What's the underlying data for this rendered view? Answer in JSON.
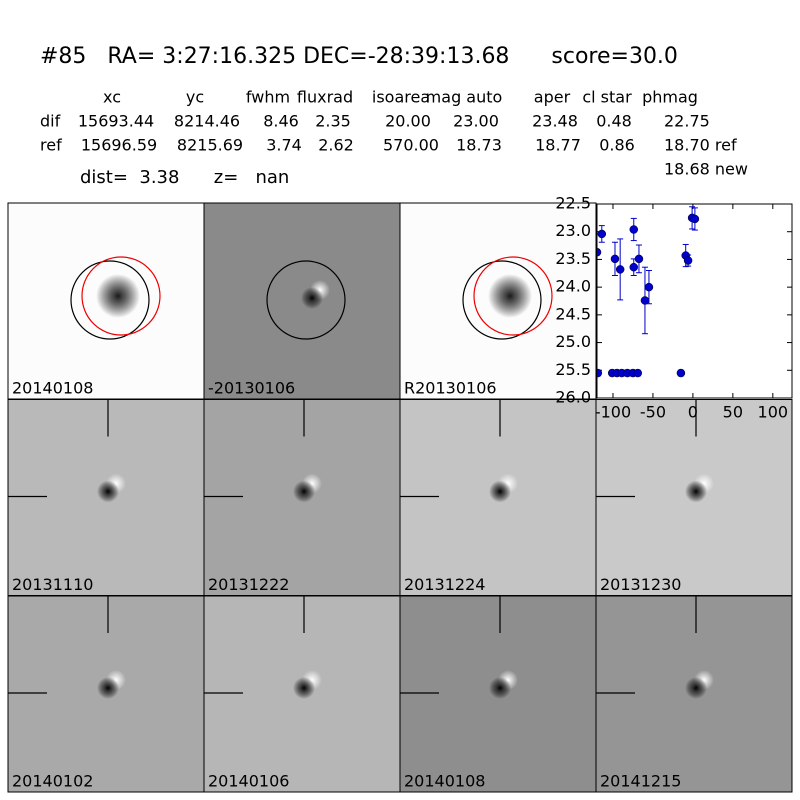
{
  "header": {
    "title": "#85   RA= 3:27:16.325 DEC=-28:39:13.68      score=30.0"
  },
  "table": {
    "columns": [
      "xc",
      "yc",
      "fwhm",
      "fluxrad",
      "isoarea",
      "mag auto",
      "aper",
      "cl star",
      "phmag"
    ],
    "rows": [
      [
        "dif",
        "15693.44",
        "8214.46",
        "8.46",
        "2.35",
        "20.00",
        "23.00",
        "23.48",
        "0.48",
        "22.75"
      ],
      [
        "ref",
        "15696.59",
        "8215.69",
        "3.74",
        "2.62",
        "570.00",
        "18.73",
        "18.77",
        "0.86",
        "18.70 ref"
      ]
    ],
    "phmag_new": "18.68 new"
  },
  "dist_line": "dist=  3.38      z=   nan",
  "panels": [
    {
      "label": "20140108"
    },
    {
      "label": "-20130106"
    },
    {
      "label": "R20130106"
    },
    {
      "label": "20131110"
    },
    {
      "label": "20131222"
    },
    {
      "label": "20131224"
    },
    {
      "label": "20131230"
    },
    {
      "label": "20140102"
    },
    {
      "label": "20140106"
    },
    {
      "label": "20140108",
      "color": "#ff0000"
    },
    {
      "label": "20141215"
    }
  ],
  "chart_data": {
    "type": "scatter",
    "x": [
      -120,
      -114,
      -119,
      -97.5,
      -91,
      -101,
      -95,
      -89,
      -82,
      -74,
      -74,
      -67.5,
      -75,
      -69,
      -60,
      -55,
      -15,
      -9,
      -6,
      -1,
      2.5
    ],
    "series": [
      {
        "color": "#0000cc",
        "values": [
          23.37,
          23.04,
          25.55,
          23.49,
          23.68,
          25.55,
          25.55,
          25.55,
          25.55,
          22.96,
          23.64,
          23.49,
          25.55,
          25.55,
          24.24,
          24.0,
          25.55,
          23.43,
          23.52,
          22.75,
          22.77
        ],
        "errors": [
          0.05,
          0.15,
          0.05,
          0.3,
          0.55,
          0.05,
          0.05,
          0.05,
          0.05,
          0.2,
          0.15,
          0.25,
          0.05,
          0.05,
          0.6,
          0.3,
          0.05,
          0.2,
          0.1,
          0.2,
          0.2
        ]
      }
    ],
    "xlim": [
      -120,
      124
    ],
    "xticks": [
      -100,
      -50,
      0,
      50,
      100
    ],
    "ylim": [
      22.5,
      26.0
    ],
    "y_inverted": true,
    "yticks": [
      22.5,
      {
        "value": 23,
        "label": "23.0"
      },
      23.5,
      {
        "value": 24,
        "label": "24.0"
      },
      24.5,
      {
        "value": 25,
        "label": "25.0"
      },
      25.5,
      {
        "value": 26,
        "label": "26.0"
      }
    ]
  }
}
